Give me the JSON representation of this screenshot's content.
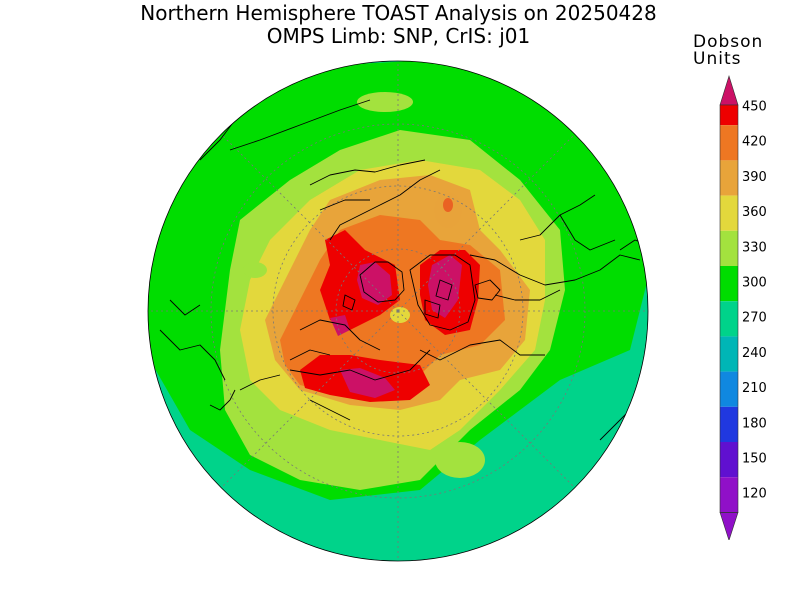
{
  "title": {
    "line1": "Northern Hemisphere TOAST Analysis on 20250428",
    "line2": "OMPS Limb: SNP, CrIS: j01"
  },
  "colorbar": {
    "title_line1": "Dobson",
    "title_line2": "Units",
    "levels": [
      {
        "value": "450",
        "color": "#cc1166"
      },
      {
        "value": "420",
        "color": "#ee0000"
      },
      {
        "value": "390",
        "color": "#ee7722"
      },
      {
        "value": "360",
        "color": "#e8a43a"
      },
      {
        "value": "330",
        "color": "#e3d83c"
      },
      {
        "value": "300",
        "color": "#a3e23e"
      },
      {
        "value": "270",
        "color": "#00dd00"
      },
      {
        "value": "240",
        "color": "#00d38a"
      },
      {
        "value": "210",
        "color": "#00b6b6"
      },
      {
        "value": "180",
        "color": "#1088e0"
      },
      {
        "value": "150",
        "color": "#2038e0"
      },
      {
        "value": "120",
        "color": "#6010d0"
      }
    ],
    "bottom_color": "#9010c8"
  },
  "map": {
    "projection": "north-polar-stereographic",
    "graticule": true
  }
}
